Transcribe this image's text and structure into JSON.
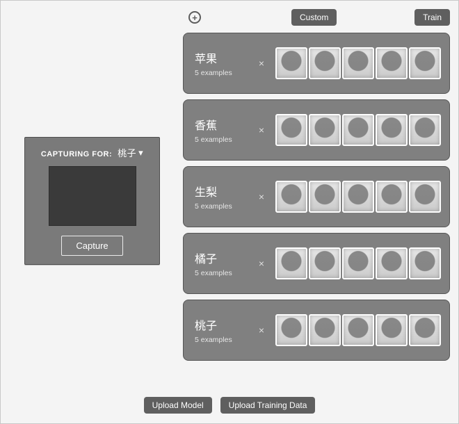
{
  "colors": {
    "page_bg": "#f4f4f4",
    "panel_bg": "#7a7a7a",
    "card_bg": "#808080",
    "pill_bg": "#5f5f5f",
    "preview_bg": "#3a3a3a",
    "text_on_dark": "#ffffff",
    "border": "#555555"
  },
  "topbar": {
    "add_glyph": "+",
    "custom_label": "Custom",
    "train_label": "Train"
  },
  "capture": {
    "heading": "CAPTURING FOR:",
    "selected_class": "桃子",
    "dropdown_glyph": "▾",
    "button_label": "Capture"
  },
  "classes": [
    {
      "name": "苹果",
      "subtitle": "5 examples",
      "delete_glyph": "×",
      "thumb_count": 5
    },
    {
      "name": "香蕉",
      "subtitle": "5 examples",
      "delete_glyph": "×",
      "thumb_count": 5
    },
    {
      "name": "生梨",
      "subtitle": "5 examples",
      "delete_glyph": "×",
      "thumb_count": 5
    },
    {
      "name": "橘子",
      "subtitle": "5 examples",
      "delete_glyph": "×",
      "thumb_count": 5
    },
    {
      "name": "桃子",
      "subtitle": "5 examples",
      "delete_glyph": "×",
      "thumb_count": 5
    }
  ],
  "bottom": {
    "upload_model_label": "Upload Model",
    "upload_data_label": "Upload Training Data"
  }
}
